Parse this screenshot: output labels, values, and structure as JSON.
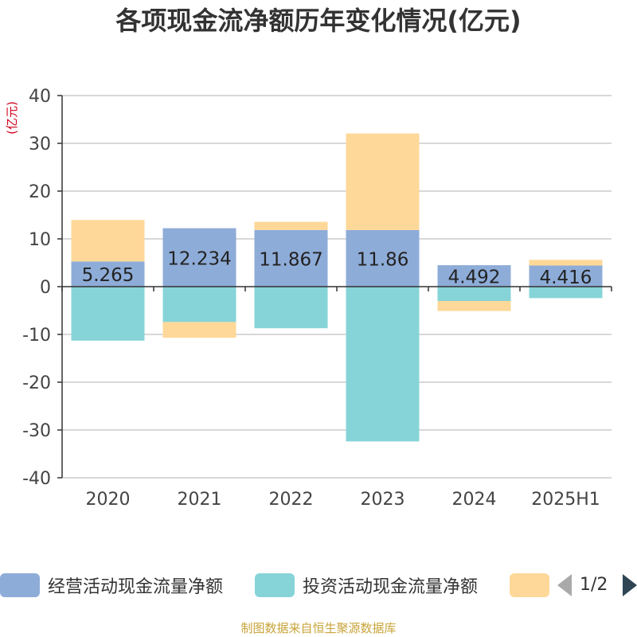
{
  "title": "各项现金流净额历年变化情况(亿元)",
  "source": "制图数据来自恒生聚源数据库",
  "colors": {
    "operating": "#8eacd8",
    "investing": "#86d4d8",
    "financing": "#fed898",
    "axis": "#333333",
    "grid": "#cccccc",
    "unit": "#d0021b",
    "tick": "#444444"
  },
  "legend": {
    "items": [
      {
        "label": "经营活动现金流量净额"
      },
      {
        "label": "投资活动现金流量净额"
      },
      {
        "label": ""
      }
    ],
    "page": "1/2"
  },
  "chart_data": {
    "type": "bar",
    "stacked": true,
    "title": "各项现金流净额历年变化情况(亿元)",
    "ylabel": "(亿元)",
    "ylim": [
      -40,
      40
    ],
    "yticks": [
      40,
      30,
      20,
      10,
      0,
      -10,
      -20,
      -30,
      -40
    ],
    "categories": [
      "2020",
      "2021",
      "2022",
      "2023",
      "2024",
      "2025H1"
    ],
    "grid": true,
    "legend_position": "bottom",
    "series": [
      {
        "name": "经营活动现金流量净额",
        "values": [
          5.265,
          12.234,
          11.867,
          11.86,
          4.492,
          4.416
        ],
        "labels": [
          "5.265",
          "12.234",
          "11.867",
          "11.86",
          "4.492",
          "4.416"
        ]
      },
      {
        "name": "投资活动现金流量净额",
        "values": [
          -11.3,
          -7.4,
          -8.7,
          -32.4,
          -3.0,
          -2.4
        ]
      },
      {
        "values": [
          8.7,
          -3.3,
          1.7,
          20.2,
          -2.1,
          1.2
        ]
      }
    ]
  }
}
